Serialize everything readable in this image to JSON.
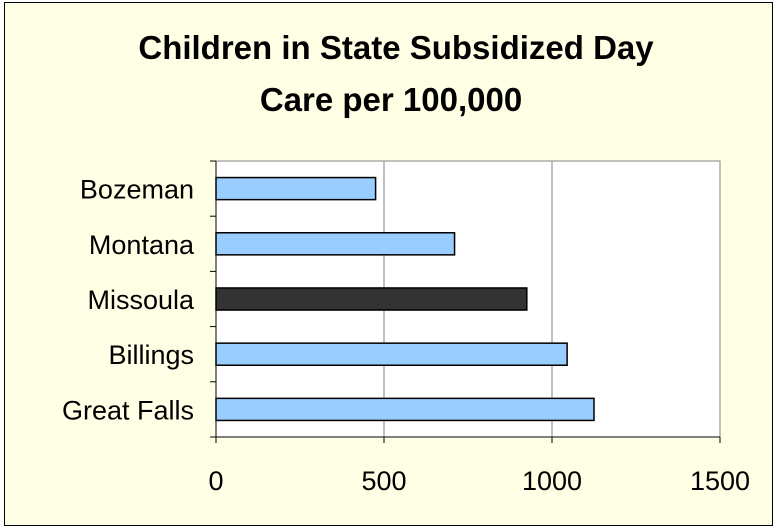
{
  "chart_data": {
    "type": "bar",
    "orientation": "horizontal",
    "title_lines": [
      "Children in State Subsidized Day",
      "Care per 100,000"
    ],
    "categories": [
      "Bozeman",
      "Montana",
      "Missoula",
      "Billings",
      "Great Falls"
    ],
    "values": [
      475,
      710,
      925,
      1045,
      1125
    ],
    "highlight_category": "Missoula",
    "xlim": [
      0,
      1500
    ],
    "xticks": [
      0,
      500,
      1000,
      1500
    ],
    "xtick_labels": [
      "0",
      "500",
      "1000",
      "1500"
    ],
    "xlabel": "",
    "ylabel": "",
    "grid": "vertical",
    "legend": "none",
    "colors": {
      "background": "#ffffe6",
      "plot_area": "#ffffff",
      "bar": "#99ccff",
      "bar_highlight": "#333333",
      "bar_edge": "#000000",
      "gridline": "#808080"
    }
  }
}
